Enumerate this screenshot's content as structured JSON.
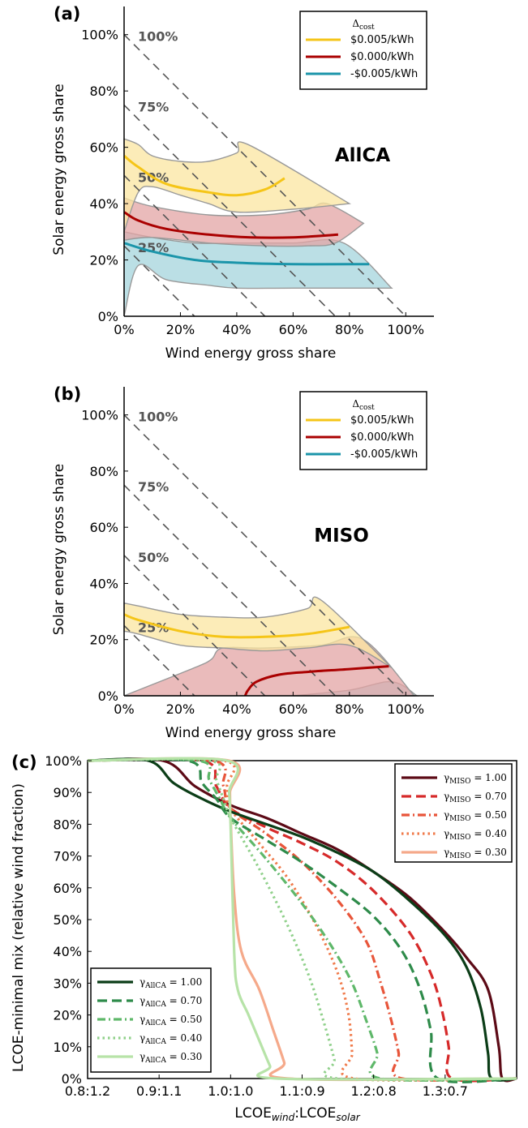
{
  "chart_data": [
    {
      "panel": "(a)",
      "type": "line",
      "region_label": "AllCA",
      "xlabel": "Wind energy gross share",
      "ylabel": "Solar energy gross share",
      "xlim": [
        0,
        110
      ],
      "ylim": [
        0,
        110
      ],
      "x_ticks": [
        "0%",
        "20%",
        "40%",
        "60%",
        "80%",
        "100%"
      ],
      "y_ticks": [
        "0%",
        "20%",
        "40%",
        "60%",
        "80%",
        "100%"
      ],
      "diagonals": [
        {
          "total": 25,
          "label": "25%"
        },
        {
          "total": 50,
          "label": "50%"
        },
        {
          "total": 75,
          "label": "75%"
        },
        {
          "total": 100,
          "label": "100%"
        }
      ],
      "legend": {
        "title": "Δcost",
        "position": "top-right"
      },
      "series": [
        {
          "name": "$0.005/kWh",
          "color": "#f5c518",
          "fill": "#fbe6a0",
          "x": [
            0,
            5,
            15,
            30,
            40,
            50,
            57
          ],
          "y": [
            57,
            53,
            47,
            44,
            43,
            45,
            49
          ],
          "band_upper": [
            [
              0,
              63
            ],
            [
              5,
              61
            ],
            [
              10,
              57
            ],
            [
              20,
              55
            ],
            [
              30,
              55
            ],
            [
              40,
              58
            ],
            [
              44,
              61
            ],
            [
              80,
              40
            ]
          ],
          "band_lower": [
            [
              0,
              30
            ],
            [
              5,
              44
            ],
            [
              10,
              46
            ],
            [
              20,
              43
            ],
            [
              30,
              40
            ],
            [
              40,
              37
            ],
            [
              60,
              38
            ],
            [
              80,
              40
            ]
          ]
        },
        {
          "name": "$0.000/kWh",
          "color": "#aa0000",
          "fill": "#e3a4a4",
          "x": [
            0,
            5,
            15,
            30,
            45,
            60,
            76
          ],
          "y": [
            37,
            34,
            31,
            29,
            28,
            28,
            29
          ],
          "band_upper": [
            [
              0,
              42
            ],
            [
              10,
              39
            ],
            [
              30,
              36
            ],
            [
              50,
              36
            ],
            [
              65,
              38
            ],
            [
              72,
              40
            ],
            [
              85,
              33
            ]
          ],
          "band_lower": [
            [
              0,
              27
            ],
            [
              10,
              28
            ],
            [
              30,
              26
            ],
            [
              50,
              25
            ],
            [
              65,
              25
            ],
            [
              75,
              26
            ],
            [
              85,
              33
            ]
          ]
        },
        {
          "name": "-$0.005/kWh",
          "color": "#1b95aa",
          "fill": "#a4d4dc",
          "x": [
            0,
            10,
            25,
            40,
            60,
            80,
            87
          ],
          "y": [
            26,
            23,
            20,
            19,
            18.5,
            18.5,
            18.5
          ],
          "band_upper": [
            [
              0,
              30
            ],
            [
              10,
              28
            ],
            [
              25,
              26
            ],
            [
              40,
              26
            ],
            [
              60,
              26
            ],
            [
              78,
              26
            ],
            [
              95,
              10
            ]
          ],
          "band_lower": [
            [
              0,
              0
            ],
            [
              5,
              18
            ],
            [
              15,
              13
            ],
            [
              30,
              11
            ],
            [
              40,
              10
            ],
            [
              60,
              10
            ],
            [
              95,
              10
            ]
          ]
        }
      ]
    },
    {
      "panel": "(b)",
      "type": "line",
      "region_label": "MISO",
      "xlabel": "Wind energy gross share",
      "ylabel": "Solar energy gross share",
      "xlim": [
        0,
        110
      ],
      "ylim": [
        0,
        110
      ],
      "x_ticks": [
        "0%",
        "20%",
        "40%",
        "60%",
        "80%",
        "100%"
      ],
      "y_ticks": [
        "0%",
        "20%",
        "40%",
        "60%",
        "80%",
        "100%"
      ],
      "diagonals": [
        {
          "total": 25,
          "label": "25%"
        },
        {
          "total": 50,
          "label": "50%"
        },
        {
          "total": 75,
          "label": "75%"
        },
        {
          "total": 100,
          "label": "100%"
        }
      ],
      "legend": {
        "title": "Δcost",
        "position": "top-right"
      },
      "series": [
        {
          "name": "$0.005/kWh",
          "color": "#f5c518",
          "fill": "#fbe6a0",
          "x": [
            0,
            5,
            20,
            35,
            50,
            65,
            80
          ],
          "y": [
            29,
            27,
            23,
            21,
            21,
            22,
            24.5
          ],
          "band_upper": [
            [
              0,
              33
            ],
            [
              5,
              32
            ],
            [
              20,
              29
            ],
            [
              35,
              28
            ],
            [
              50,
              28
            ],
            [
              65,
              31
            ],
            [
              70,
              34
            ],
            [
              95,
              10
            ]
          ],
          "band_lower": [
            [
              0,
              23
            ],
            [
              5,
              22
            ],
            [
              20,
              18
            ],
            [
              35,
              17
            ],
            [
              50,
              16
            ],
            [
              65,
              17
            ],
            [
              80,
              18
            ],
            [
              95,
              10
            ]
          ]
        },
        {
          "name": "$0.000/kWh",
          "color": "#aa0000",
          "fill": "#e3a4a4",
          "x": [
            43,
            44,
            47,
            55,
            65,
            80,
            94
          ],
          "y": [
            0,
            2,
            5,
            7.5,
            8.5,
            9.5,
            10.5
          ],
          "band_upper": [
            [
              0,
              0
            ],
            [
              25,
              10
            ],
            [
              31,
              13
            ],
            [
              35,
              17
            ],
            [
              50,
              17
            ],
            [
              70,
              18
            ],
            [
              85,
              20
            ],
            [
              103,
              0
            ]
          ],
          "band_lower": [
            [
              0,
              0
            ],
            [
              20,
              0
            ],
            [
              40,
              0
            ],
            [
              60,
              0
            ],
            [
              80,
              0
            ],
            [
              103,
              0
            ]
          ]
        },
        {
          "name": "-$0.005/kWh",
          "color": "#1b95aa",
          "fill": "#a4d4dc",
          "x": [],
          "y": [],
          "band_upper": [
            [
              60,
              0
            ],
            [
              80,
              2
            ],
            [
              95,
              5
            ],
            [
              104,
              0
            ]
          ],
          "band_lower": [
            [
              60,
              0
            ],
            [
              104,
              0
            ]
          ]
        }
      ]
    },
    {
      "panel": "(c)",
      "type": "line",
      "xlabel_main": "LCOE",
      "xlabel_sub1": "wind",
      "xlabel_sep": ":LCOE",
      "xlabel_sub2": "solar",
      "ylabel": "LCOE-minimal mix (relative wind fraction)",
      "xlim": [
        0.8,
        1.4
      ],
      "ylim": [
        0,
        100
      ],
      "x_ticks": [
        "0.8:1.2",
        "0.9:1.1",
        "1.0:1.0",
        "1.1:0.9",
        "1.2:0.8",
        "1.3:0.7"
      ],
      "y_ticks": [
        "0%",
        "10%",
        "20%",
        "30%",
        "40%",
        "50%",
        "60%",
        "70%",
        "80%",
        "90%",
        "100%"
      ],
      "miso_legend_position": "top-right",
      "allca_legend_position": "lower-left",
      "miso_series": [
        {
          "gamma": "1.00",
          "color": "#5c0a16",
          "dash": "solid",
          "x": [
            0.905,
            0.95,
            1.0,
            1.05,
            1.1,
            1.15,
            1.2,
            1.25,
            1.3,
            1.33,
            1.36,
            1.375,
            1.38
          ],
          "y": [
            100,
            92,
            86,
            82,
            77,
            72,
            65,
            57,
            46,
            38,
            28,
            10,
            0
          ]
        },
        {
          "gamma": "0.70",
          "color": "#d62a2a",
          "dash": "dashed",
          "x": [
            0.96,
            0.98,
            1.0,
            1.05,
            1.1,
            1.15,
            1.2,
            1.25,
            1.28,
            1.295,
            1.305,
            1.31
          ],
          "y": [
            100,
            92,
            85,
            79,
            74,
            68,
            59,
            46,
            33,
            22,
            10,
            0
          ]
        },
        {
          "gamma": "0.50",
          "color": "#e8553a",
          "dash": "dashdot",
          "x": [
            0.975,
            0.99,
            1.0,
            1.05,
            1.1,
            1.15,
            1.19,
            1.21,
            1.225,
            1.235,
            1.24
          ],
          "y": [
            100,
            92,
            85,
            77,
            68,
            56,
            43,
            30,
            18,
            8,
            0
          ]
        },
        {
          "gamma": "0.40",
          "color": "#f07a4a",
          "dash": "dotted",
          "x": [
            0.99,
            0.995,
            1.0,
            1.04,
            1.08,
            1.12,
            1.15,
            1.165,
            1.17,
            1.173
          ],
          "y": [
            100,
            92,
            85,
            74,
            63,
            48,
            33,
            20,
            8,
            0
          ]
        },
        {
          "gamma": "0.30",
          "color": "#f5a98a",
          "dash": "solid",
          "x": [
            0.998,
            0.999,
            1.0,
            1.005,
            1.015,
            1.04,
            1.06,
            1.075,
            1.08
          ],
          "y": [
            100,
            90,
            82,
            58,
            40,
            28,
            15,
            5,
            0
          ]
        }
      ],
      "allca_series": [
        {
          "gamma": "1.00",
          "color": "#0b3d17",
          "dash": "solid",
          "x": [
            0.885,
            0.92,
            0.96,
            1.0,
            1.05,
            1.1,
            1.15,
            1.2,
            1.25,
            1.3,
            1.33,
            1.35,
            1.36,
            1.365
          ],
          "y": [
            100,
            93,
            88,
            84,
            80,
            76,
            71,
            65,
            56,
            45,
            35,
            22,
            8,
            0
          ]
        },
        {
          "gamma": "0.70",
          "color": "#2e8b4a",
          "dash": "dashed",
          "x": [
            0.94,
            0.96,
            0.98,
            1.0,
            1.05,
            1.1,
            1.15,
            1.2,
            1.24,
            1.265,
            1.28,
            1.29
          ],
          "y": [
            100,
            93,
            88,
            82,
            75,
            68,
            60,
            51,
            40,
            28,
            15,
            0
          ]
        },
        {
          "gamma": "0.50",
          "color": "#5fb86a",
          "dash": "dashdot",
          "x": [
            0.955,
            0.97,
            0.985,
            1.0,
            1.05,
            1.1,
            1.14,
            1.17,
            1.19,
            1.205,
            1.21
          ],
          "y": [
            100,
            94,
            88,
            82,
            69,
            55,
            42,
            30,
            18,
            8,
            0
          ]
        },
        {
          "gamma": "0.40",
          "color": "#8fd08a",
          "dash": "dotted",
          "x": [
            0.97,
            0.98,
            0.99,
            1.0,
            1.04,
            1.08,
            1.11,
            1.13,
            1.145,
            1.15
          ],
          "y": [
            100,
            94,
            88,
            82,
            66,
            48,
            32,
            18,
            6,
            0
          ]
        },
        {
          "gamma": "0.30",
          "color": "#b7e3a8",
          "dash": "solid",
          "x": [
            0.995,
            0.998,
            1.0,
            1.005,
            1.01,
            1.025,
            1.04,
            1.055,
            1.065
          ],
          "y": [
            100,
            90,
            80,
            40,
            28,
            20,
            12,
            4,
            0
          ]
        }
      ]
    }
  ]
}
